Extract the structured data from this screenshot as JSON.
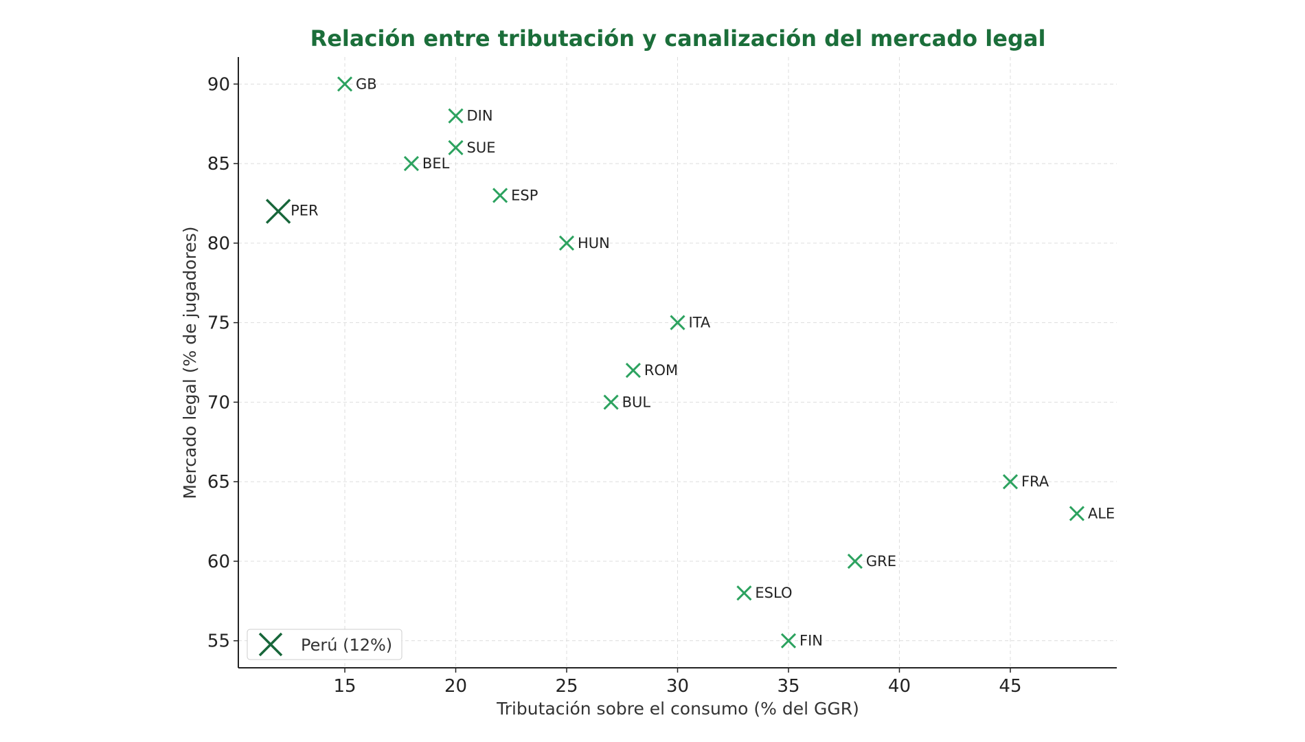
{
  "chart_data": {
    "type": "scatter",
    "title": "Relación entre tributación y canalización del mercado legal",
    "xlabel": "Tributación sobre el consumo (% del GGR)",
    "ylabel": "Mercado legal (% de jugadores)",
    "xlim": [
      10.2,
      49.8
    ],
    "ylim": [
      53.3,
      91.7
    ],
    "xticks": [
      15,
      20,
      25,
      30,
      35,
      40,
      45
    ],
    "yticks": [
      55,
      60,
      65,
      70,
      75,
      80,
      85,
      90
    ],
    "grid": true,
    "marker": "x",
    "legend": {
      "placement": "bottom-left",
      "entries": [
        "Perú (12%)"
      ]
    },
    "colors": {
      "title": "#1b6e3a",
      "points": "#2ca25f",
      "highlight": "#17663a",
      "grid": "#dddddd"
    },
    "points": [
      {
        "label": "GB",
        "x": 15,
        "y": 90
      },
      {
        "label": "DIN",
        "x": 20,
        "y": 88
      },
      {
        "label": "SUE",
        "x": 20,
        "y": 86
      },
      {
        "label": "BEL",
        "x": 18,
        "y": 85
      },
      {
        "label": "ESP",
        "x": 22,
        "y": 83
      },
      {
        "label": "HUN",
        "x": 25,
        "y": 80
      },
      {
        "label": "ITA",
        "x": 30,
        "y": 75
      },
      {
        "label": "ROM",
        "x": 28,
        "y": 72
      },
      {
        "label": "BUL",
        "x": 27,
        "y": 70
      },
      {
        "label": "FRA",
        "x": 45,
        "y": 65
      },
      {
        "label": "ALE",
        "x": 48,
        "y": 63
      },
      {
        "label": "GRE",
        "x": 38,
        "y": 60
      },
      {
        "label": "ESLO",
        "x": 33,
        "y": 58
      },
      {
        "label": "FIN",
        "x": 35,
        "y": 55
      }
    ],
    "highlight": {
      "label": "PER",
      "x": 12,
      "y": 82
    }
  }
}
